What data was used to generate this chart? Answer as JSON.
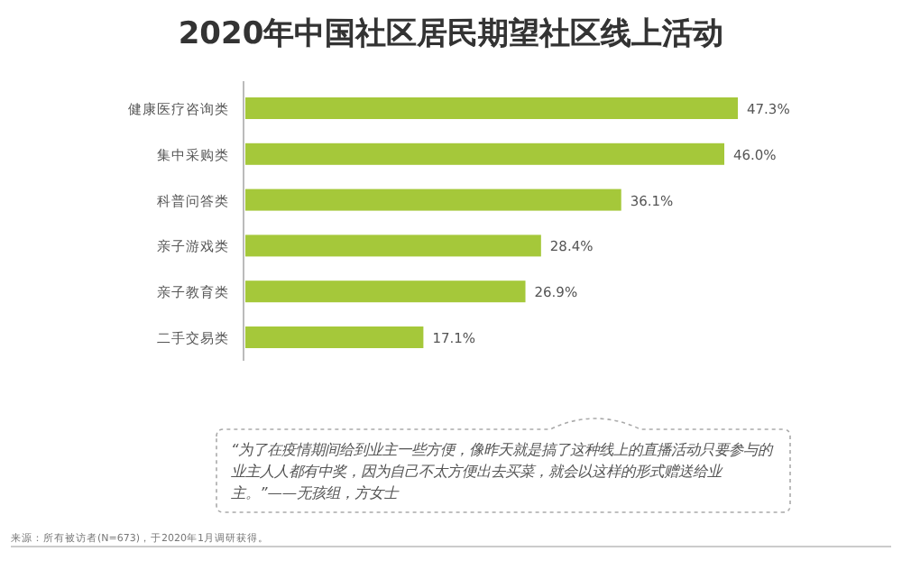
{
  "chart_data": {
    "type": "bar",
    "orientation": "horizontal",
    "title": "2020年中国社区居民期望社区线上活动",
    "categories": [
      "健康医疗咨询类",
      "集中采购类",
      "科普问答类",
      "亲子游戏类",
      "亲子教育类",
      "二手交易类"
    ],
    "values": [
      47.3,
      46.0,
      36.1,
      28.4,
      26.9,
      17.1
    ],
    "value_labels": [
      "47.3%",
      "46.0%",
      "36.1%",
      "28.4%",
      "26.9%",
      "17.1%"
    ],
    "color": "#a5c83a",
    "annotations": [
      "“为了在疫情期间给到业主一些方便，像昨天就是搞了这种线上的直播活动只要参与的业主人人都有中奖，因为自己不太方便出去买菜，就会以这样的形式赠送给业主。”——无孩组，方女士",
      "来源：所有被访者(N=673)，于2020年1月调研获得。"
    ]
  }
}
